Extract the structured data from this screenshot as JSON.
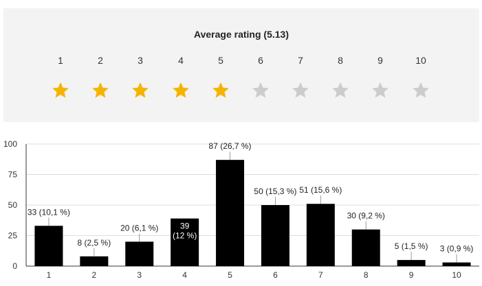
{
  "rating": {
    "title": "Average rating (5.13)",
    "scale": [
      "1",
      "2",
      "3",
      "4",
      "5",
      "6",
      "7",
      "8",
      "9",
      "10"
    ],
    "filled_stars": 5,
    "filled_color": "#f5b400",
    "empty_color": "#cccccc",
    "star_icon": "star-icon"
  },
  "chart_data": {
    "type": "bar",
    "categories": [
      "1",
      "2",
      "3",
      "4",
      "5",
      "6",
      "7",
      "8",
      "9",
      "10"
    ],
    "values": [
      33,
      8,
      20,
      39,
      87,
      50,
      51,
      30,
      5,
      3
    ],
    "data_labels": [
      "33 (10,1 %)",
      "8 (2,5 %)",
      "20 (6,1 %)",
      "39 (12 %)",
      "87 (26,7 %)",
      "50 (15,3 %)",
      "51 (15,6 %)",
      "30 (9,2 %)",
      "5 (1,5 %)",
      "3 (0,9 %)"
    ],
    "inside_label_index": 3,
    "yticks": [
      "0",
      "25",
      "50",
      "75",
      "100"
    ],
    "ylim": [
      0,
      100
    ],
    "grid": true,
    "bar_color": "#000000"
  }
}
